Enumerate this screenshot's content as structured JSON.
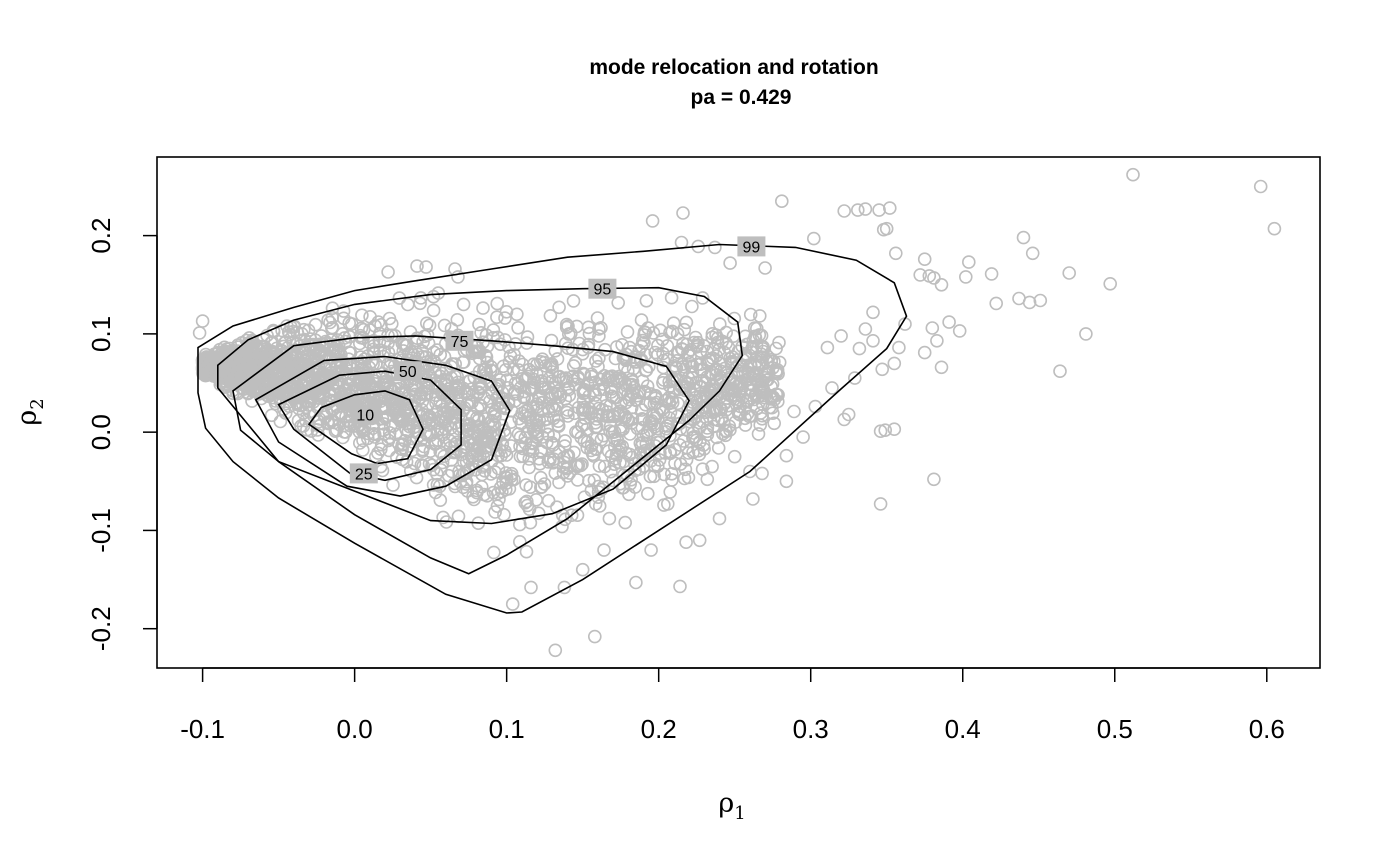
{
  "chart_data": {
    "type": "scatter",
    "title": "mode relocation and rotation",
    "subtitle": "pa =  0.429",
    "xlabel": {
      "base": "ρ",
      "sub": "1"
    },
    "ylabel": {
      "base": "ρ",
      "sub": "2"
    },
    "xlim": [
      -0.13,
      0.635
    ],
    "ylim": [
      -0.24,
      0.28
    ],
    "xticks": [
      -0.1,
      0.0,
      0.1,
      0.2,
      0.3,
      0.4,
      0.5,
      0.6
    ],
    "xtick_labels": [
      "-0.1",
      "0.0",
      "0.1",
      "0.2",
      "0.3",
      "0.4",
      "0.5",
      "0.6"
    ],
    "yticks": [
      -0.2,
      -0.1,
      0.0,
      0.1,
      0.2
    ],
    "ytick_labels": [
      "-0.2",
      "-0.1",
      "0.0",
      "0.1",
      "0.2"
    ],
    "grid": false,
    "point_color": "#bebebe",
    "contour_color": "#000000",
    "outer_points": [
      [
        0.512,
        0.262
      ],
      [
        0.596,
        0.25
      ],
      [
        0.605,
        0.207
      ],
      [
        0.497,
        0.151
      ],
      [
        0.481,
        0.1
      ],
      [
        0.47,
        0.162
      ],
      [
        0.464,
        0.062
      ],
      [
        0.451,
        0.134
      ],
      [
        0.446,
        0.182
      ],
      [
        0.44,
        0.198
      ],
      [
        0.444,
        0.132
      ],
      [
        0.437,
        0.136
      ],
      [
        0.422,
        0.131
      ],
      [
        0.419,
        0.161
      ],
      [
        0.404,
        0.173
      ],
      [
        0.402,
        0.158
      ],
      [
        0.398,
        0.103
      ],
      [
        0.391,
        0.112
      ],
      [
        0.386,
        0.066
      ],
      [
        0.386,
        0.15
      ],
      [
        0.381,
        0.157
      ],
      [
        0.378,
        0.159
      ],
      [
        0.38,
        0.106
      ],
      [
        0.375,
        0.081
      ],
      [
        0.372,
        0.16
      ],
      [
        0.381,
        -0.048
      ],
      [
        0.355,
        0.003
      ],
      [
        0.349,
        0.002
      ],
      [
        0.346,
        0.001
      ],
      [
        0.346,
        -0.073
      ],
      [
        0.352,
        0.228
      ],
      [
        0.345,
        0.226
      ],
      [
        0.336,
        0.227
      ],
      [
        0.331,
        0.226
      ],
      [
        0.281,
        0.235
      ],
      [
        0.302,
        0.197
      ],
      [
        0.322,
        0.225
      ],
      [
        0.356,
        0.182
      ],
      [
        0.362,
        0.11
      ],
      [
        0.358,
        0.086
      ],
      [
        0.355,
        0.07
      ],
      [
        0.347,
        0.064
      ],
      [
        0.341,
        0.093
      ],
      [
        0.336,
        0.105
      ],
      [
        0.32,
        0.098
      ],
      [
        0.311,
        0.086
      ],
      [
        0.303,
        0.026
      ],
      [
        0.289,
        0.021
      ],
      [
        0.276,
        0.009
      ],
      [
        0.268,
        -0.042
      ],
      [
        0.284,
        -0.024
      ],
      [
        0.284,
        -0.05
      ],
      [
        0.262,
        -0.068
      ],
      [
        0.24,
        -0.088
      ],
      [
        0.227,
        -0.11
      ],
      [
        0.218,
        -0.112
      ],
      [
        0.214,
        -0.157
      ],
      [
        0.185,
        -0.153
      ],
      [
        0.158,
        -0.208
      ],
      [
        0.132,
        -0.222
      ],
      [
        0.195,
        -0.12
      ],
      [
        0.196,
        0.215
      ],
      [
        0.216,
        0.223
      ],
      [
        0.215,
        0.193
      ],
      [
        0.237,
        0.188
      ],
      [
        0.226,
        0.189
      ],
      [
        0.247,
        0.172
      ],
      [
        0.259,
        0.187
      ],
      [
        0.27,
        0.167
      ],
      [
        0.325,
        0.018
      ],
      [
        0.322,
        0.013
      ],
      [
        0.329,
        0.055
      ],
      [
        0.332,
        0.085
      ],
      [
        0.341,
        0.122
      ],
      [
        0.35,
        0.207
      ],
      [
        0.348,
        0.206
      ],
      [
        0.375,
        0.176
      ],
      [
        0.383,
        0.093
      ],
      [
        0.314,
        0.045
      ],
      [
        0.295,
        -0.005
      ],
      [
        0.26,
        -0.04
      ],
      [
        0.25,
        -0.025
      ],
      [
        0.232,
        -0.048
      ],
      [
        0.206,
        -0.073
      ],
      [
        0.178,
        -0.092
      ],
      [
        0.164,
        -0.12
      ],
      [
        0.15,
        -0.14
      ],
      [
        0.138,
        -0.158
      ],
      [
        0.116,
        -0.158
      ],
      [
        0.104,
        -0.175
      ],
      [
        -0.102,
        0.101
      ],
      [
        -0.1,
        0.113
      ],
      [
        -0.098,
        0.069
      ],
      [
        -0.095,
        0.07
      ],
      [
        -0.083,
        0.073
      ],
      [
        0.022,
        0.163
      ],
      [
        0.041,
        0.169
      ],
      [
        0.047,
        0.168
      ],
      [
        0.066,
        0.166
      ],
      [
        0.068,
        0.158
      ]
    ],
    "cloud_bounds": {
      "upper": [
        [
          -0.1,
          0.08
        ],
        [
          -0.06,
          0.115
        ],
        [
          0.0,
          0.145
        ],
        [
          0.06,
          0.16
        ],
        [
          0.12,
          0.165
        ],
        [
          0.18,
          0.165
        ],
        [
          0.24,
          0.155
        ],
        [
          0.27,
          0.13
        ],
        [
          0.29,
          0.09
        ],
        [
          0.28,
          0.05
        ]
      ],
      "lower": [
        [
          -0.1,
          0.055
        ],
        [
          -0.05,
          0.0
        ],
        [
          0.0,
          -0.05
        ],
        [
          0.05,
          -0.1
        ],
        [
          0.1,
          -0.15
        ],
        [
          0.16,
          -0.12
        ],
        [
          0.22,
          -0.08
        ],
        [
          0.27,
          -0.02
        ],
        [
          0.29,
          0.03
        ]
      ],
      "count": 2600
    },
    "contours": [
      {
        "level": "10",
        "label_at": [
          0.007,
          0.018
        ],
        "points": [
          [
            0.0,
            0.038
          ],
          [
            0.02,
            0.042
          ],
          [
            0.036,
            0.033
          ],
          [
            0.045,
            0.003
          ],
          [
            0.035,
            -0.027
          ],
          [
            0.015,
            -0.032
          ],
          [
            -0.002,
            -0.022
          ],
          [
            -0.03,
            0.008
          ],
          [
            -0.022,
            0.025
          ]
        ]
      },
      {
        "level": "25",
        "label_at": [
          0.006,
          -0.042
        ],
        "points": [
          [
            -0.01,
            0.058
          ],
          [
            0.02,
            0.062
          ],
          [
            0.05,
            0.053
          ],
          [
            0.07,
            0.023
          ],
          [
            0.07,
            -0.013
          ],
          [
            0.05,
            -0.038
          ],
          [
            0.02,
            -0.049
          ],
          [
            -0.003,
            -0.042
          ],
          [
            -0.04,
            0.003
          ],
          [
            -0.05,
            0.028
          ]
        ]
      },
      {
        "level": "50",
        "label_at": [
          0.035,
          0.062
        ],
        "points": [
          [
            -0.02,
            0.073
          ],
          [
            0.02,
            0.077
          ],
          [
            0.06,
            0.068
          ],
          [
            0.09,
            0.052
          ],
          [
            0.102,
            0.022
          ],
          [
            0.09,
            -0.028
          ],
          [
            0.06,
            -0.055
          ],
          [
            0.03,
            -0.065
          ],
          [
            -0.005,
            -0.055
          ],
          [
            -0.05,
            -0.01
          ],
          [
            -0.065,
            0.033
          ]
        ]
      },
      {
        "level": "75",
        "label_at": [
          0.069,
          0.093
        ],
        "points": [
          [
            -0.04,
            0.088
          ],
          [
            0.0,
            0.096
          ],
          [
            0.04,
            0.098
          ],
          [
            0.09,
            0.093
          ],
          [
            0.13,
            0.088
          ],
          [
            0.17,
            0.082
          ],
          [
            0.205,
            0.067
          ],
          [
            0.22,
            0.032
          ],
          [
            0.205,
            -0.013
          ],
          [
            0.17,
            -0.058
          ],
          [
            0.13,
            -0.083
          ],
          [
            0.09,
            -0.093
          ],
          [
            0.05,
            -0.09
          ],
          [
            0.0,
            -0.06
          ],
          [
            -0.05,
            -0.03
          ],
          [
            -0.075,
            0.002
          ],
          [
            -0.08,
            0.042
          ]
        ]
      },
      {
        "level": "95",
        "label_at": [
          0.163,
          0.146
        ],
        "points": [
          [
            -0.09,
            0.068
          ],
          [
            -0.07,
            0.094
          ],
          [
            -0.04,
            0.114
          ],
          [
            0.0,
            0.13
          ],
          [
            0.05,
            0.14
          ],
          [
            0.1,
            0.144
          ],
          [
            0.15,
            0.146
          ],
          [
            0.2,
            0.147
          ],
          [
            0.23,
            0.138
          ],
          [
            0.252,
            0.112
          ],
          [
            0.255,
            0.078
          ],
          [
            0.24,
            0.042
          ],
          [
            0.22,
            0.012
          ],
          [
            0.18,
            -0.038
          ],
          [
            0.14,
            -0.088
          ],
          [
            0.1,
            -0.125
          ],
          [
            0.075,
            -0.144
          ],
          [
            0.05,
            -0.128
          ],
          [
            0.0,
            -0.084
          ],
          [
            -0.05,
            -0.03
          ],
          [
            -0.09,
            0.045
          ]
        ]
      },
      {
        "level": "99",
        "label_at": [
          0.261,
          0.189
        ],
        "points": [
          [
            -0.103,
            0.086
          ],
          [
            -0.08,
            0.108
          ],
          [
            -0.04,
            0.127
          ],
          [
            0.0,
            0.144
          ],
          [
            0.04,
            0.154
          ],
          [
            0.09,
            0.166
          ],
          [
            0.14,
            0.178
          ],
          [
            0.19,
            0.184
          ],
          [
            0.24,
            0.191
          ],
          [
            0.29,
            0.188
          ],
          [
            0.33,
            0.175
          ],
          [
            0.355,
            0.152
          ],
          [
            0.363,
            0.118
          ],
          [
            0.35,
            0.085
          ],
          [
            0.32,
            0.044
          ],
          [
            0.26,
            -0.04
          ],
          [
            0.2,
            -0.1
          ],
          [
            0.15,
            -0.15
          ],
          [
            0.11,
            -0.183
          ],
          [
            0.1,
            -0.184
          ],
          [
            0.06,
            -0.165
          ],
          [
            0.0,
            -0.113
          ],
          [
            -0.05,
            -0.067
          ],
          [
            -0.08,
            -0.03
          ],
          [
            -0.098,
            0.004
          ],
          [
            -0.103,
            0.04
          ]
        ]
      }
    ]
  }
}
